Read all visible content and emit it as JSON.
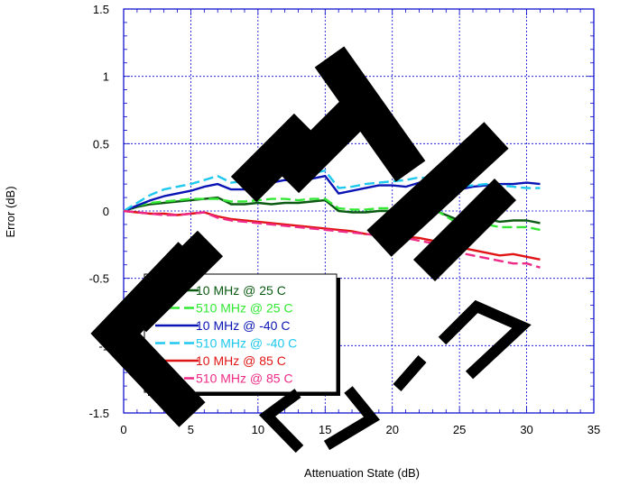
{
  "chart_data": {
    "type": "line",
    "xlabel": "Attenuation State (dB)",
    "ylabel": "Error (dB)",
    "xlim": [
      0,
      35
    ],
    "ylim": [
      -1.5,
      1.5
    ],
    "x_ticks": [
      "0",
      "5",
      "10",
      "15",
      "20",
      "25",
      "30",
      "35"
    ],
    "y_ticks": [
      "1.5",
      "1",
      "0.5",
      "0",
      "-0.5",
      "-1",
      "-1.5"
    ],
    "grid": true,
    "legend_position": "lower-left",
    "x": [
      0,
      1,
      2,
      3,
      4,
      5,
      6,
      7,
      8,
      9,
      10,
      11,
      12,
      13,
      14,
      15,
      16,
      17,
      18,
      19,
      20,
      21,
      22,
      23,
      24,
      25,
      26,
      27,
      28,
      29,
      30,
      31
    ],
    "series": [
      {
        "name": "10 MHz @ 25 C",
        "color": "#0b5a12",
        "dash": "solid",
        "values": [
          0,
          0.03,
          0.05,
          0.06,
          0.07,
          0.08,
          0.09,
          0.1,
          0.05,
          0.05,
          0.06,
          0.05,
          0.06,
          0.06,
          0.07,
          0.08,
          0.0,
          -0.01,
          -0.01,
          0.0,
          0.0,
          0.01,
          0.02,
          0.01,
          -0.03,
          -0.07,
          -0.05,
          -0.06,
          -0.08,
          -0.07,
          -0.07,
          -0.09
        ]
      },
      {
        "name": "510 MHz @ 25 C",
        "color": "#33e833",
        "dash": "dash",
        "values": [
          0,
          0.04,
          0.06,
          0.07,
          0.08,
          0.09,
          0.09,
          0.09,
          0.07,
          0.07,
          0.08,
          0.09,
          0.09,
          0.08,
          0.09,
          0.09,
          0.02,
          0.01,
          0.01,
          0.02,
          0.02,
          0.04,
          0.05,
          0.02,
          -0.04,
          -0.1,
          -0.08,
          -0.1,
          -0.12,
          -0.12,
          -0.12,
          -0.14
        ]
      },
      {
        "name": "10 MHz @ -40 C",
        "color": "#0a14b4",
        "dash": "solid",
        "values": [
          0,
          0.04,
          0.08,
          0.11,
          0.13,
          0.15,
          0.18,
          0.2,
          0.16,
          0.16,
          0.19,
          0.21,
          0.23,
          0.22,
          0.24,
          0.26,
          0.13,
          0.15,
          0.17,
          0.19,
          0.19,
          0.18,
          0.21,
          0.21,
          0.18,
          0.16,
          0.18,
          0.19,
          0.2,
          0.2,
          0.21,
          0.2
        ]
      },
      {
        "name": "510 MHz @ -40 C",
        "color": "#1ec8ee",
        "dash": "dash",
        "values": [
          0,
          0.06,
          0.12,
          0.16,
          0.18,
          0.2,
          0.23,
          0.26,
          0.21,
          0.22,
          0.24,
          0.25,
          0.27,
          0.26,
          0.28,
          0.3,
          0.17,
          0.18,
          0.2,
          0.21,
          0.22,
          0.23,
          0.25,
          0.24,
          0.19,
          0.18,
          0.19,
          0.2,
          0.19,
          0.18,
          0.17,
          0.17
        ]
      },
      {
        "name": "10 MHz @ 85 C",
        "color": "#e01414",
        "dash": "solid",
        "values": [
          0,
          -0.01,
          -0.02,
          -0.02,
          -0.03,
          -0.02,
          -0.01,
          -0.04,
          -0.06,
          -0.07,
          -0.08,
          -0.09,
          -0.1,
          -0.11,
          -0.12,
          -0.13,
          -0.14,
          -0.15,
          -0.17,
          -0.18,
          -0.18,
          -0.19,
          -0.2,
          -0.22,
          -0.25,
          -0.27,
          -0.29,
          -0.31,
          -0.33,
          -0.32,
          -0.34,
          -0.36
        ]
      },
      {
        "name": "510 MHz @ 85 C",
        "color": "#ee2a86",
        "dash": "dash",
        "values": [
          0,
          -0.01,
          -0.02,
          -0.03,
          -0.03,
          -0.02,
          -0.01,
          -0.05,
          -0.07,
          -0.08,
          -0.09,
          -0.1,
          -0.11,
          -0.12,
          -0.13,
          -0.14,
          -0.15,
          -0.16,
          -0.17,
          -0.18,
          -0.19,
          -0.2,
          -0.22,
          -0.24,
          -0.27,
          -0.31,
          -0.33,
          -0.35,
          -0.37,
          -0.39,
          -0.39,
          -0.42
        ]
      }
    ]
  },
  "watermark": {
    "text": "ELITE A312",
    "color": "#000000"
  }
}
